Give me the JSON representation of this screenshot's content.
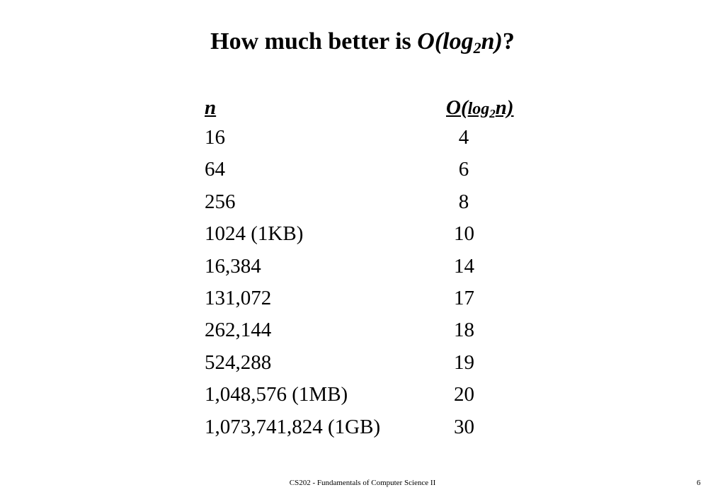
{
  "title": {
    "prefix": "How much better is ",
    "fn_open": "O(log",
    "fn_sub": "2",
    "fn_close": "n)",
    "suffix": "?"
  },
  "table": {
    "header": {
      "n": "n",
      "log_O": "O(",
      "log_word": "log",
      "log_sub": "2",
      "log_close": "n)"
    },
    "rows": [
      {
        "n": "16",
        "log": "4"
      },
      {
        "n": "64",
        "log": "6"
      },
      {
        "n": "256",
        "log": "8"
      },
      {
        "n": "1024 (1KB)",
        "log": "10"
      },
      {
        "n": "16,384",
        "log": "14"
      },
      {
        "n": "131,072",
        "log": "17"
      },
      {
        "n": "262,144",
        "log": "18"
      },
      {
        "n": "524,288",
        "log": "19"
      },
      {
        "n": "1,048,576 (1MB)",
        "log": "20"
      },
      {
        "n": "1,073,741,824 (1GB)",
        "log": "30"
      }
    ]
  },
  "footer": {
    "course": "CS202 - Fundamentals of Computer Science II",
    "page": "6"
  }
}
